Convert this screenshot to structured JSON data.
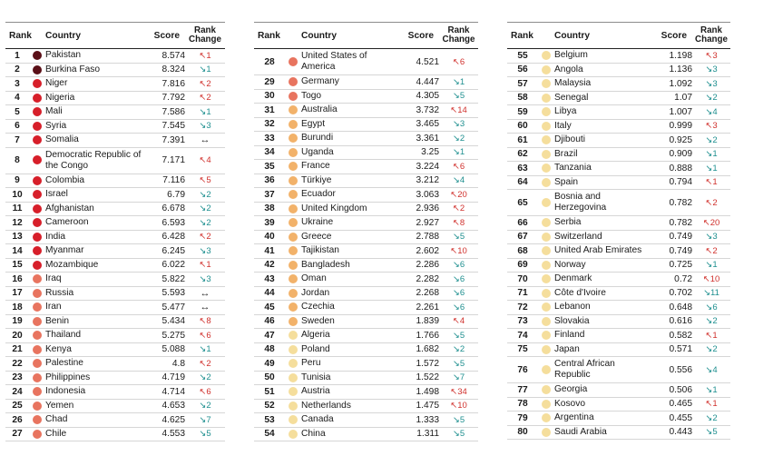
{
  "headers": {
    "rank": "Rank",
    "country": "Country",
    "score": "Score",
    "change": "Rank Change"
  },
  "colors": {
    "c1": "#5a0f17",
    "c2": "#d71f2a",
    "c3": "#e8745f",
    "c4": "#f2b26a",
    "c5": "#f5de9c",
    "up": "#d0312d",
    "down": "#1e8f8f"
  },
  "columns": [
    [
      {
        "rank": "1",
        "country": "Pakistan",
        "score": "8.574",
        "dir": "up",
        "change": "1",
        "cat": "c1"
      },
      {
        "rank": "2",
        "country": "Burkina Faso",
        "score": "8.324",
        "dir": "down",
        "change": "1",
        "cat": "c1"
      },
      {
        "rank": "3",
        "country": "Niger",
        "score": "7.816",
        "dir": "up",
        "change": "2",
        "cat": "c2"
      },
      {
        "rank": "4",
        "country": "Nigeria",
        "score": "7.792",
        "dir": "up",
        "change": "2",
        "cat": "c2"
      },
      {
        "rank": "5",
        "country": "Mali",
        "score": "7.586",
        "dir": "down",
        "change": "1",
        "cat": "c2"
      },
      {
        "rank": "6",
        "country": "Syria",
        "score": "7.545",
        "dir": "down",
        "change": "3",
        "cat": "c2"
      },
      {
        "rank": "7",
        "country": "Somalia",
        "score": "7.391",
        "dir": "same",
        "change": "",
        "cat": "c2"
      },
      {
        "rank": "8",
        "country": "Democratic Republic of the Congo",
        "score": "7.171",
        "dir": "up",
        "change": "4",
        "cat": "c2",
        "tall": true
      },
      {
        "rank": "9",
        "country": "Colombia",
        "score": "7.116",
        "dir": "up",
        "change": "5",
        "cat": "c2"
      },
      {
        "rank": "10",
        "country": "Israel",
        "score": "6.79",
        "dir": "down",
        "change": "2",
        "cat": "c2"
      },
      {
        "rank": "11",
        "country": "Afghanistan",
        "score": "6.678",
        "dir": "down",
        "change": "2",
        "cat": "c2"
      },
      {
        "rank": "12",
        "country": "Cameroon",
        "score": "6.593",
        "dir": "down",
        "change": "2",
        "cat": "c2"
      },
      {
        "rank": "13",
        "country": "India",
        "score": "6.428",
        "dir": "up",
        "change": "2",
        "cat": "c2"
      },
      {
        "rank": "14",
        "country": "Myanmar",
        "score": "6.245",
        "dir": "down",
        "change": "3",
        "cat": "c2"
      },
      {
        "rank": "15",
        "country": "Mozambique",
        "score": "6.022",
        "dir": "up",
        "change": "1",
        "cat": "c2"
      },
      {
        "rank": "16",
        "country": "Iraq",
        "score": "5.822",
        "dir": "down",
        "change": "3",
        "cat": "c3"
      },
      {
        "rank": "17",
        "country": "Russia",
        "score": "5.593",
        "dir": "same",
        "change": "",
        "cat": "c3"
      },
      {
        "rank": "18",
        "country": "Iran",
        "score": "5.477",
        "dir": "same",
        "change": "",
        "cat": "c3"
      },
      {
        "rank": "19",
        "country": "Benin",
        "score": "5.434",
        "dir": "up",
        "change": "8",
        "cat": "c3"
      },
      {
        "rank": "20",
        "country": "Thailand",
        "score": "5.275",
        "dir": "up",
        "change": "6",
        "cat": "c3"
      },
      {
        "rank": "21",
        "country": "Kenya",
        "score": "5.088",
        "dir": "down",
        "change": "1",
        "cat": "c3"
      },
      {
        "rank": "22",
        "country": "Palestine",
        "score": "4.8",
        "dir": "up",
        "change": "2",
        "cat": "c3"
      },
      {
        "rank": "23",
        "country": "Philippines",
        "score": "4.719",
        "dir": "down",
        "change": "2",
        "cat": "c3"
      },
      {
        "rank": "24",
        "country": "Indonesia",
        "score": "4.714",
        "dir": "up",
        "change": "6",
        "cat": "c3"
      },
      {
        "rank": "25",
        "country": "Yemen",
        "score": "4.653",
        "dir": "down",
        "change": "2",
        "cat": "c3"
      },
      {
        "rank": "26",
        "country": "Chad",
        "score": "4.625",
        "dir": "down",
        "change": "7",
        "cat": "c3"
      },
      {
        "rank": "27",
        "country": "Chile",
        "score": "4.553",
        "dir": "down",
        "change": "5",
        "cat": "c3"
      }
    ],
    [
      {
        "rank": "28",
        "country": "United States of America",
        "score": "4.521",
        "dir": "up",
        "change": "6",
        "cat": "c3",
        "tall": true
      },
      {
        "rank": "29",
        "country": "Germany",
        "score": "4.447",
        "dir": "down",
        "change": "1",
        "cat": "c3"
      },
      {
        "rank": "30",
        "country": "Togo",
        "score": "4.305",
        "dir": "down",
        "change": "5",
        "cat": "c3"
      },
      {
        "rank": "31",
        "country": "Australia",
        "score": "3.732",
        "dir": "up",
        "change": "14",
        "cat": "c4"
      },
      {
        "rank": "32",
        "country": "Egypt",
        "score": "3.465",
        "dir": "down",
        "change": "3",
        "cat": "c4"
      },
      {
        "rank": "33",
        "country": "Burundi",
        "score": "3.361",
        "dir": "down",
        "change": "2",
        "cat": "c4"
      },
      {
        "rank": "34",
        "country": "Uganda",
        "score": "3.25",
        "dir": "down",
        "change": "1",
        "cat": "c4"
      },
      {
        "rank": "35",
        "country": "France",
        "score": "3.224",
        "dir": "up",
        "change": "6",
        "cat": "c4"
      },
      {
        "rank": "36",
        "country": "Türkiye",
        "score": "3.212",
        "dir": "down",
        "change": "4",
        "cat": "c4"
      },
      {
        "rank": "37",
        "country": "Ecuador",
        "score": "3.063",
        "dir": "up",
        "change": "20",
        "cat": "c4"
      },
      {
        "rank": "38",
        "country": "United Kingdom",
        "score": "2.936",
        "dir": "up",
        "change": "2",
        "cat": "c4"
      },
      {
        "rank": "39",
        "country": "Ukraine",
        "score": "2.927",
        "dir": "up",
        "change": "8",
        "cat": "c4"
      },
      {
        "rank": "40",
        "country": "Greece",
        "score": "2.788",
        "dir": "down",
        "change": "5",
        "cat": "c4"
      },
      {
        "rank": "41",
        "country": "Tajikistan",
        "score": "2.602",
        "dir": "up",
        "change": "10",
        "cat": "c4"
      },
      {
        "rank": "42",
        "country": "Bangladesh",
        "score": "2.286",
        "dir": "down",
        "change": "6",
        "cat": "c4"
      },
      {
        "rank": "43",
        "country": "Oman",
        "score": "2.282",
        "dir": "down",
        "change": "6",
        "cat": "c4"
      },
      {
        "rank": "44",
        "country": "Jordan",
        "score": "2.268",
        "dir": "down",
        "change": "6",
        "cat": "c4"
      },
      {
        "rank": "45",
        "country": "Czechia",
        "score": "2.261",
        "dir": "down",
        "change": "6",
        "cat": "c4"
      },
      {
        "rank": "46",
        "country": "Sweden",
        "score": "1.839",
        "dir": "up",
        "change": "4",
        "cat": "c4"
      },
      {
        "rank": "47",
        "country": "Algeria",
        "score": "1.766",
        "dir": "down",
        "change": "5",
        "cat": "c5"
      },
      {
        "rank": "48",
        "country": "Poland",
        "score": "1.682",
        "dir": "down",
        "change": "2",
        "cat": "c5"
      },
      {
        "rank": "49",
        "country": "Peru",
        "score": "1.572",
        "dir": "down",
        "change": "5",
        "cat": "c5"
      },
      {
        "rank": "50",
        "country": "Tunisia",
        "score": "1.522",
        "dir": "down",
        "change": "7",
        "cat": "c5"
      },
      {
        "rank": "51",
        "country": "Austria",
        "score": "1.498",
        "dir": "up",
        "change": "34",
        "cat": "c5"
      },
      {
        "rank": "52",
        "country": "Netherlands",
        "score": "1.475",
        "dir": "up",
        "change": "10",
        "cat": "c5"
      },
      {
        "rank": "53",
        "country": "Canada",
        "score": "1.333",
        "dir": "down",
        "change": "5",
        "cat": "c5"
      },
      {
        "rank": "54",
        "country": "China",
        "score": "1.311",
        "dir": "down",
        "change": "5",
        "cat": "c5"
      }
    ],
    [
      {
        "rank": "55",
        "country": "Belgium",
        "score": "1.198",
        "dir": "up",
        "change": "3",
        "cat": "c5"
      },
      {
        "rank": "56",
        "country": "Angola",
        "score": "1.136",
        "dir": "down",
        "change": "3",
        "cat": "c5"
      },
      {
        "rank": "57",
        "country": "Malaysia",
        "score": "1.092",
        "dir": "down",
        "change": "3",
        "cat": "c5"
      },
      {
        "rank": "58",
        "country": "Senegal",
        "score": "1.07",
        "dir": "down",
        "change": "2",
        "cat": "c5"
      },
      {
        "rank": "59",
        "country": "Libya",
        "score": "1.007",
        "dir": "down",
        "change": "4",
        "cat": "c5"
      },
      {
        "rank": "60",
        "country": "Italy",
        "score": "0.999",
        "dir": "up",
        "change": "3",
        "cat": "c5"
      },
      {
        "rank": "61",
        "country": "Djibouti",
        "score": "0.925",
        "dir": "down",
        "change": "2",
        "cat": "c5"
      },
      {
        "rank": "62",
        "country": "Brazil",
        "score": "0.909",
        "dir": "down",
        "change": "1",
        "cat": "c5"
      },
      {
        "rank": "63",
        "country": "Tanzania",
        "score": "0.888",
        "dir": "down",
        "change": "1",
        "cat": "c5"
      },
      {
        "rank": "64",
        "country": "Spain",
        "score": "0.794",
        "dir": "up",
        "change": "1",
        "cat": "c5"
      },
      {
        "rank": "65",
        "country": "Bosnia and Herzegovina",
        "score": "0.782",
        "dir": "up",
        "change": "2",
        "cat": "c5",
        "tall": true
      },
      {
        "rank": "66",
        "country": "Serbia",
        "score": "0.782",
        "dir": "up",
        "change": "20",
        "cat": "c5"
      },
      {
        "rank": "67",
        "country": "Switzerland",
        "score": "0.749",
        "dir": "down",
        "change": "3",
        "cat": "c5"
      },
      {
        "rank": "68",
        "country": "United Arab Emirates",
        "score": "0.749",
        "dir": "up",
        "change": "2",
        "cat": "c5"
      },
      {
        "rank": "69",
        "country": "Norway",
        "score": "0.725",
        "dir": "down",
        "change": "1",
        "cat": "c5"
      },
      {
        "rank": "70",
        "country": "Denmark",
        "score": "0.72",
        "dir": "up",
        "change": "10",
        "cat": "c5"
      },
      {
        "rank": "71",
        "country": "Côte d'Ivoire",
        "score": "0.702",
        "dir": "down",
        "change": "11",
        "cat": "c5"
      },
      {
        "rank": "72",
        "country": "Lebanon",
        "score": "0.648",
        "dir": "down",
        "change": "6",
        "cat": "c5"
      },
      {
        "rank": "73",
        "country": "Slovakia",
        "score": "0.616",
        "dir": "down",
        "change": "2",
        "cat": "c5"
      },
      {
        "rank": "74",
        "country": "Finland",
        "score": "0.582",
        "dir": "up",
        "change": "1",
        "cat": "c5"
      },
      {
        "rank": "75",
        "country": "Japan",
        "score": "0.571",
        "dir": "down",
        "change": "2",
        "cat": "c5"
      },
      {
        "rank": "76",
        "country": "Central African Republic",
        "score": "0.556",
        "dir": "down",
        "change": "4",
        "cat": "c5",
        "tall": true
      },
      {
        "rank": "77",
        "country": "Georgia",
        "score": "0.506",
        "dir": "down",
        "change": "1",
        "cat": "c5"
      },
      {
        "rank": "78",
        "country": "Kosovo",
        "score": "0.465",
        "dir": "up",
        "change": "1",
        "cat": "c5"
      },
      {
        "rank": "79",
        "country": "Argentina",
        "score": "0.455",
        "dir": "down",
        "change": "2",
        "cat": "c5"
      },
      {
        "rank": "80",
        "country": "Saudi Arabia",
        "score": "0.443",
        "dir": "down",
        "change": "5",
        "cat": "c5"
      }
    ]
  ]
}
